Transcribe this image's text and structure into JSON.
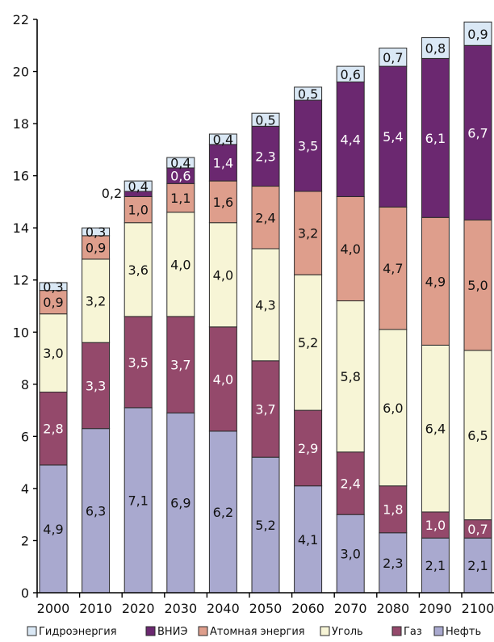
{
  "chart_data": {
    "type": "bar",
    "stacked": true,
    "categories": [
      "2000",
      "2010",
      "2020",
      "2030",
      "2040",
      "2050",
      "2060",
      "2070",
      "2080",
      "2090",
      "2100"
    ],
    "ylim": [
      0,
      22
    ],
    "yticks": [
      "0",
      "2",
      "4",
      "6",
      "8",
      "10",
      "12",
      "14",
      "16",
      "18",
      "20",
      "22"
    ],
    "grid": false,
    "legend_position": "bottom",
    "series": [
      {
        "name": "Нефть",
        "color": "#a9a9cf",
        "values": [
          4.9,
          6.3,
          7.1,
          6.9,
          6.2,
          5.2,
          4.1,
          3.0,
          2.3,
          2.1,
          2.1
        ],
        "labels": [
          "4,9",
          "6,3",
          "7,1",
          "6,9",
          "6,2",
          "5,2",
          "4,1",
          "3,0",
          "2,3",
          "2,1",
          "2,1"
        ]
      },
      {
        "name": "Газ",
        "color": "#94496b",
        "values": [
          2.8,
          3.3,
          3.5,
          3.7,
          4.0,
          3.7,
          2.9,
          2.4,
          1.8,
          1.0,
          0.7
        ],
        "labels": [
          "2,8",
          "3,3",
          "3,5",
          "3,7",
          "4,0",
          "3,7",
          "2,9",
          "2,4",
          "1,8",
          "1,0",
          "0,7"
        ]
      },
      {
        "name": "Уголь",
        "color": "#f7f5d6",
        "values": [
          3.0,
          3.2,
          3.6,
          4.0,
          4.0,
          4.3,
          5.2,
          5.8,
          6.0,
          6.4,
          6.5
        ],
        "labels": [
          "3,0",
          "3,2",
          "3,6",
          "4,0",
          "4,0",
          "4,3",
          "5,2",
          "5,8",
          "6,0",
          "6,4",
          "6,5"
        ]
      },
      {
        "name": "Атомная энергия",
        "color": "#de9e8c",
        "values": [
          0.9,
          0.9,
          1.0,
          1.1,
          1.6,
          2.4,
          3.2,
          4.0,
          4.7,
          4.9,
          5.0
        ],
        "labels": [
          "0,9",
          "0,9",
          "1,0",
          "1,1",
          "1,6",
          "2,4",
          "3,2",
          "4,0",
          "4,7",
          "4,9",
          "5,0"
        ]
      },
      {
        "name": "ВНИЭ",
        "color": "#6b2870",
        "values": [
          0,
          0,
          0.2,
          0.6,
          1.4,
          2.3,
          3.5,
          4.4,
          5.4,
          6.1,
          6.7
        ],
        "labels": [
          "",
          "",
          "0,2",
          "0,6",
          "1,4",
          "2,3",
          "3,5",
          "4,4",
          "5,4",
          "6,1",
          "6,7"
        ]
      },
      {
        "name": "Гидроэнергия",
        "color": "#dae8f5",
        "values": [
          0.3,
          0.3,
          0.4,
          0.4,
          0.4,
          0.5,
          0.5,
          0.6,
          0.7,
          0.8,
          0.9
        ],
        "labels": [
          "0,3",
          "0,3",
          "0,4",
          "0,4",
          "0,4",
          "0,5",
          "0,5",
          "0,6",
          "0,7",
          "0,8",
          "0,9"
        ]
      }
    ],
    "legend_order": [
      "Гидроэнергия",
      "ВНИЭ",
      "Атомная энергия",
      "Уголь",
      "Газ",
      "Нефть"
    ]
  }
}
